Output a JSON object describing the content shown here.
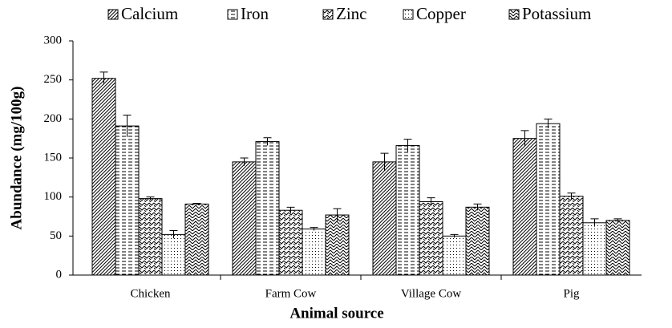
{
  "chart_data": {
    "type": "bar",
    "x_label": "Animal source",
    "y_label": "Abundance (mg/100g)",
    "categories": [
      "Chicken",
      "Farm Cow",
      "Village Cow",
      "Pig"
    ],
    "series": [
      {
        "name": "Calcium",
        "color": "#000000",
        "pattern": "dense-diagonal",
        "values": [
          252,
          145,
          145,
          175
        ],
        "errors": [
          8,
          5,
          11,
          10
        ]
      },
      {
        "name": "Iron",
        "color": "#000000",
        "pattern": "horizontal-dash",
        "values": [
          191,
          171,
          166,
          194
        ],
        "errors": [
          14,
          5,
          8,
          6
        ]
      },
      {
        "name": "Zinc",
        "color": "#000000",
        "pattern": "wave",
        "values": [
          98,
          83,
          94,
          101
        ],
        "errors": [
          2,
          4,
          5,
          4
        ]
      },
      {
        "name": "Copper",
        "color": "#000000",
        "pattern": "dots",
        "values": [
          52,
          59,
          50,
          67
        ],
        "errors": [
          5,
          2,
          2,
          5
        ]
      },
      {
        "name": "Potassium",
        "color": "#000000",
        "pattern": "zigzag",
        "values": [
          91,
          77,
          87,
          70
        ],
        "errors": [
          1,
          8,
          4,
          2
        ]
      }
    ],
    "ylim": [
      0,
      300
    ],
    "yticks": [
      0,
      50,
      100,
      150,
      200,
      250,
      300
    ],
    "grid": false,
    "legend": "top"
  }
}
